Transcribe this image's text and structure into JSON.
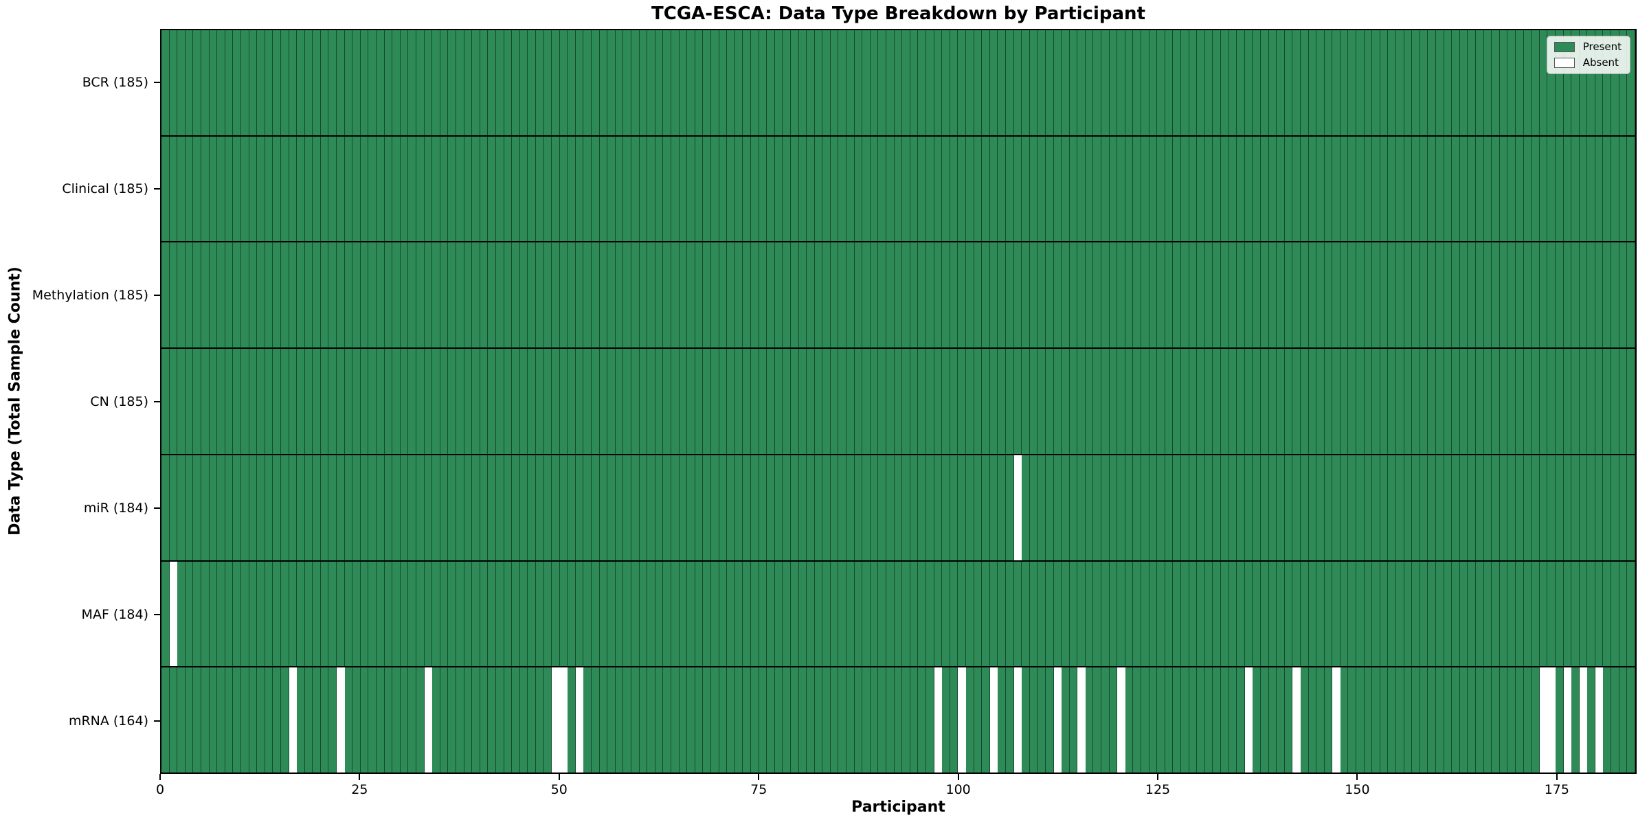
{
  "title": "TCGA-ESCA: Data Type Breakdown by Participant",
  "colors": {
    "present": "#2e8b57",
    "absent": "#ffffff",
    "bar_edge": "#113823",
    "axis": "#000000"
  },
  "chart_data": {
    "type": "heatmap",
    "title": "TCGA-ESCA: Data Type Breakdown by Participant",
    "x_label": "Participant",
    "y_label": "Data Type (Total Sample Count)",
    "x_ticks": [
      0,
      25,
      50,
      75,
      100,
      125,
      150,
      175
    ],
    "n_participants": 185,
    "x_range": [
      0,
      185
    ],
    "grid": false,
    "legend_position": "upper right",
    "legend": [
      {
        "label": "Present",
        "color": "#2e8b57"
      },
      {
        "label": "Absent",
        "color": "#ffffff"
      }
    ],
    "rows": [
      {
        "label": "BCR (185)",
        "data_type": "BCR",
        "total_samples": 185,
        "absent_participants": []
      },
      {
        "label": "Clinical (185)",
        "data_type": "Clinical",
        "total_samples": 185,
        "absent_participants": []
      },
      {
        "label": "Methylation (185)",
        "data_type": "Methylation",
        "total_samples": 185,
        "absent_participants": []
      },
      {
        "label": "CN (185)",
        "data_type": "CN",
        "total_samples": 185,
        "absent_participants": []
      },
      {
        "label": "miR (184)",
        "data_type": "miR",
        "total_samples": 184,
        "absent_participants": [
          107
        ]
      },
      {
        "label": "MAF (184)",
        "data_type": "MAF",
        "total_samples": 184,
        "absent_participants": [
          1
        ]
      },
      {
        "label": "mRNA (164)",
        "data_type": "mRNA",
        "total_samples": 164,
        "absent_participants": [
          16,
          22,
          33,
          49,
          50,
          52,
          97,
          100,
          104,
          107,
          112,
          115,
          120,
          136,
          142,
          147,
          173,
          174,
          176,
          178,
          180
        ]
      }
    ]
  }
}
